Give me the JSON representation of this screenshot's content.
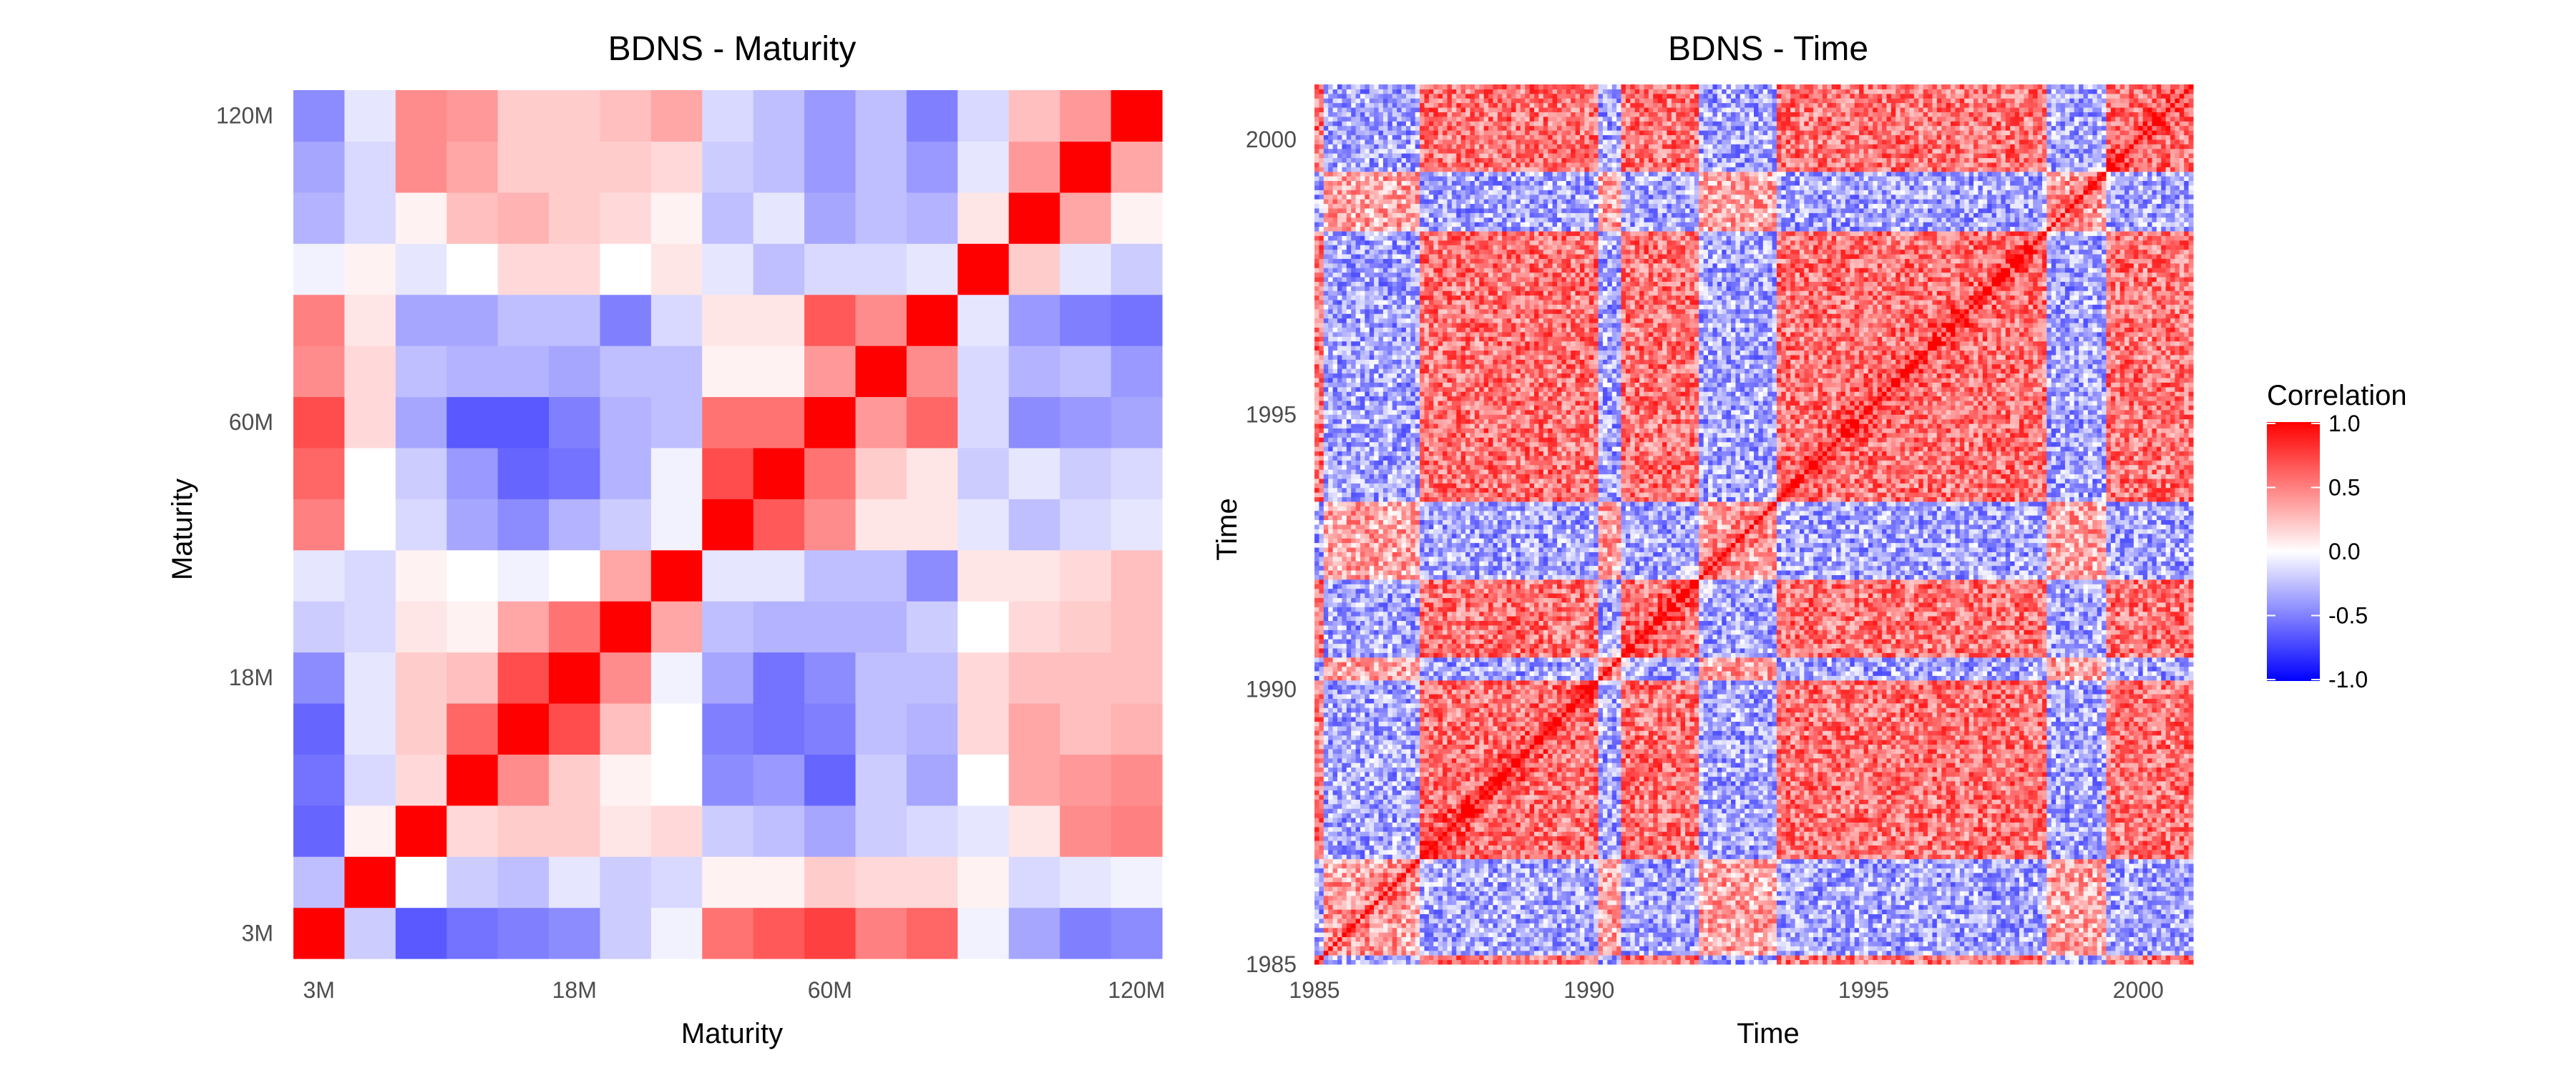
{
  "chart_data": [
    {
      "type": "heatmap",
      "title": "BDNS - Maturity",
      "xlabel": "Maturity",
      "ylabel": "Maturity",
      "n": 17,
      "tick_labels": [
        "3M",
        "18M",
        "60M",
        "120M"
      ],
      "tick_indices": [
        0,
        5,
        10,
        16
      ],
      "values": [
        [
          1.0,
          -0.2,
          -0.65,
          -0.55,
          -0.5,
          -0.45,
          -0.2,
          -0.05,
          0.55,
          0.65,
          0.75,
          0.5,
          0.6,
          -0.05,
          -0.35,
          -0.5,
          -0.45
        ],
        [
          -0.25,
          1.0,
          0.0,
          -0.2,
          -0.25,
          -0.1,
          -0.2,
          -0.15,
          0.05,
          0.05,
          0.2,
          0.15,
          0.15,
          0.05,
          -0.15,
          -0.1,
          -0.05
        ],
        [
          -0.6,
          0.05,
          1.0,
          0.15,
          0.2,
          0.2,
          0.1,
          0.15,
          -0.2,
          -0.25,
          -0.35,
          -0.2,
          -0.15,
          -0.1,
          0.1,
          0.45,
          0.5
        ],
        [
          -0.55,
          -0.15,
          0.15,
          1.0,
          0.45,
          0.2,
          0.05,
          0.0,
          -0.45,
          -0.4,
          -0.6,
          -0.2,
          -0.35,
          0.0,
          0.35,
          0.4,
          0.45
        ],
        [
          -0.6,
          -0.1,
          0.2,
          0.6,
          1.0,
          0.7,
          0.25,
          0.0,
          -0.5,
          -0.55,
          -0.5,
          -0.25,
          -0.3,
          0.15,
          0.35,
          0.25,
          0.3
        ],
        [
          -0.45,
          -0.1,
          0.2,
          0.25,
          0.7,
          1.0,
          0.45,
          -0.05,
          -0.35,
          -0.55,
          -0.45,
          -0.25,
          -0.25,
          0.15,
          0.25,
          0.25,
          0.25
        ],
        [
          -0.2,
          -0.15,
          0.1,
          0.05,
          0.35,
          0.55,
          1.0,
          0.35,
          -0.25,
          -0.3,
          -0.3,
          -0.3,
          -0.2,
          0.0,
          0.15,
          0.2,
          0.25
        ],
        [
          -0.1,
          -0.15,
          0.05,
          0.0,
          -0.05,
          0.0,
          0.35,
          1.0,
          -0.1,
          -0.1,
          -0.25,
          -0.25,
          -0.45,
          0.1,
          0.1,
          0.15,
          0.25
        ],
        [
          0.5,
          0.0,
          -0.15,
          -0.35,
          -0.45,
          -0.3,
          -0.2,
          -0.05,
          1.0,
          0.65,
          0.45,
          0.1,
          0.1,
          -0.1,
          -0.25,
          -0.15,
          -0.1
        ],
        [
          0.6,
          0.0,
          -0.2,
          -0.4,
          -0.6,
          -0.55,
          -0.3,
          -0.05,
          0.7,
          1.0,
          0.55,
          0.2,
          0.1,
          -0.2,
          -0.1,
          -0.2,
          -0.15
        ],
        [
          0.7,
          0.15,
          -0.35,
          -0.65,
          -0.65,
          -0.5,
          -0.3,
          -0.25,
          0.55,
          0.55,
          1.0,
          0.4,
          0.6,
          -0.15,
          -0.45,
          -0.4,
          -0.35
        ],
        [
          0.45,
          0.15,
          -0.25,
          -0.3,
          -0.3,
          -0.35,
          -0.25,
          -0.25,
          0.05,
          0.05,
          0.4,
          1.0,
          0.45,
          -0.15,
          -0.3,
          -0.25,
          -0.4
        ],
        [
          0.5,
          0.1,
          -0.35,
          -0.35,
          -0.25,
          -0.25,
          -0.5,
          -0.15,
          0.1,
          0.1,
          0.65,
          0.45,
          1.0,
          -0.1,
          -0.4,
          -0.5,
          -0.55
        ],
        [
          -0.05,
          0.05,
          -0.1,
          0.0,
          0.15,
          0.15,
          0.0,
          0.1,
          -0.1,
          -0.25,
          -0.15,
          -0.15,
          -0.1,
          1.0,
          0.2,
          -0.1,
          -0.2
        ],
        [
          -0.3,
          -0.15,
          0.05,
          0.25,
          0.3,
          0.2,
          0.15,
          0.05,
          -0.25,
          -0.1,
          -0.35,
          -0.25,
          -0.3,
          0.1,
          1.0,
          0.35,
          0.05
        ],
        [
          -0.35,
          -0.15,
          0.45,
          0.35,
          0.2,
          0.2,
          0.2,
          0.15,
          -0.2,
          -0.25,
          -0.4,
          -0.25,
          -0.4,
          -0.1,
          0.4,
          1.0,
          0.35
        ],
        [
          -0.45,
          -0.1,
          0.45,
          0.4,
          0.2,
          0.2,
          0.25,
          0.35,
          -0.15,
          -0.25,
          -0.4,
          -0.25,
          -0.5,
          -0.15,
          0.25,
          0.4,
          1.0
        ]
      ]
    },
    {
      "type": "heatmap",
      "title": "BDNS - Time",
      "xlabel": "Time",
      "ylabel": "Time",
      "x_range": [
        1985,
        2001
      ],
      "y_range": [
        1985,
        2001
      ],
      "tick_values": [
        1985,
        1990,
        1995,
        2000
      ],
      "tick_labels": [
        "1985",
        "1990",
        "1995",
        "2000"
      ],
      "n": 192,
      "negative_periods": [
        [
          1985.2,
          1986.9
        ],
        [
          1990.2,
          1990.6
        ],
        [
          1992.0,
          1992.8
        ],
        [
          1992.8,
          1993.4
        ],
        [
          1998.3,
          1999.4
        ]
      ]
    }
  ],
  "legend": {
    "title": "Correlation",
    "labels": [
      "1.0",
      "0.5",
      "0.0",
      "-0.5",
      "-1.0"
    ],
    "values": [
      1.0,
      0.5,
      0.0,
      -0.5,
      -1.0
    ],
    "colors": {
      "high": "#ff0000",
      "mid": "#ffffff",
      "low": "#0000ff"
    }
  }
}
